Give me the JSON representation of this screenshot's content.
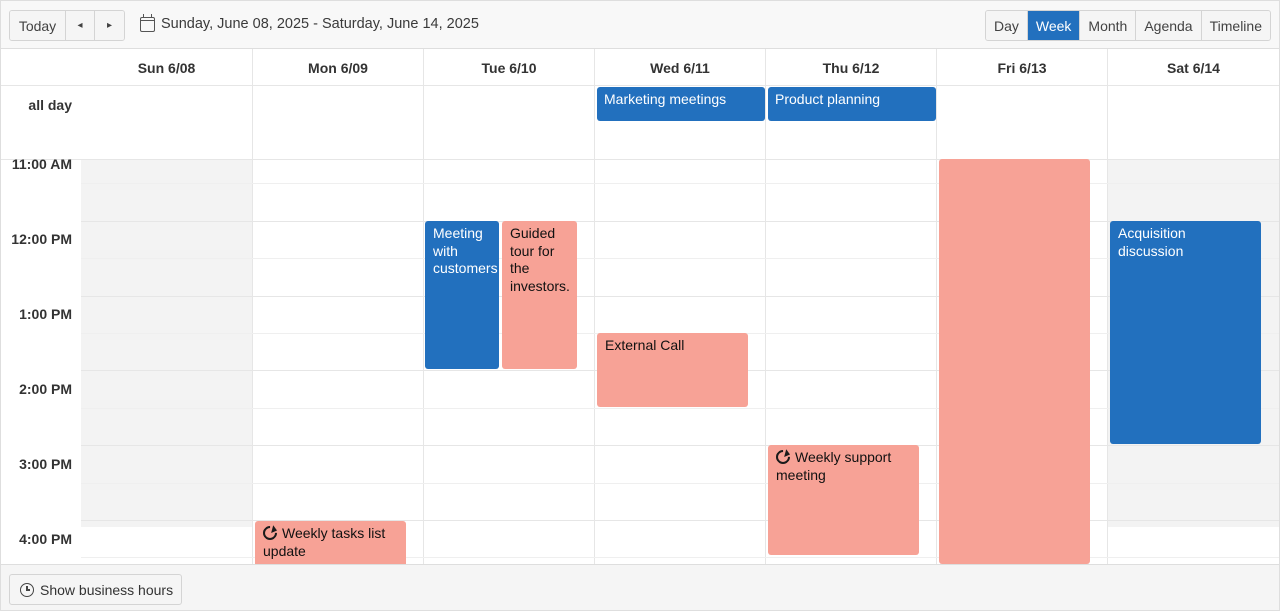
{
  "toolbar": {
    "today_label": "Today",
    "prev_icon": "◂",
    "next_icon": "▸",
    "date_range": "Sunday, June 08, 2025 - Saturday, June 14, 2025",
    "views": [
      {
        "label": "Day",
        "active": false
      },
      {
        "label": "Week",
        "active": true
      },
      {
        "label": "Month",
        "active": false
      },
      {
        "label": "Agenda",
        "active": false
      },
      {
        "label": "Timeline",
        "active": false
      }
    ]
  },
  "days": [
    "Sun 6/08",
    "Mon 6/09",
    "Tue 6/10",
    "Wed 6/11",
    "Thu 6/12",
    "Fri 6/13",
    "Sat 6/14"
  ],
  "all_day_label": "all day",
  "times": [
    "11:00 AM",
    "12:00 PM",
    "1:00 PM",
    "2:00 PM",
    "3:00 PM",
    "4:00 PM"
  ],
  "events": {
    "marketing": "Marketing meetings",
    "product": "Product planning",
    "meeting_customers": "Meeting with customers",
    "guided_tour": "Guided tour for the investors.",
    "external_call": "External Call",
    "weekly_support": "Weekly support meeting",
    "acquisition": "Acquisition discussion",
    "weekly_tasks": "Weekly tasks list update",
    "friday_block": ""
  },
  "colors": {
    "accent": "#2270be",
    "event_pink": "#f7a296",
    "nonbusiness": "#f3f3f3"
  },
  "footer": {
    "business_hours_label": "Show business hours"
  }
}
